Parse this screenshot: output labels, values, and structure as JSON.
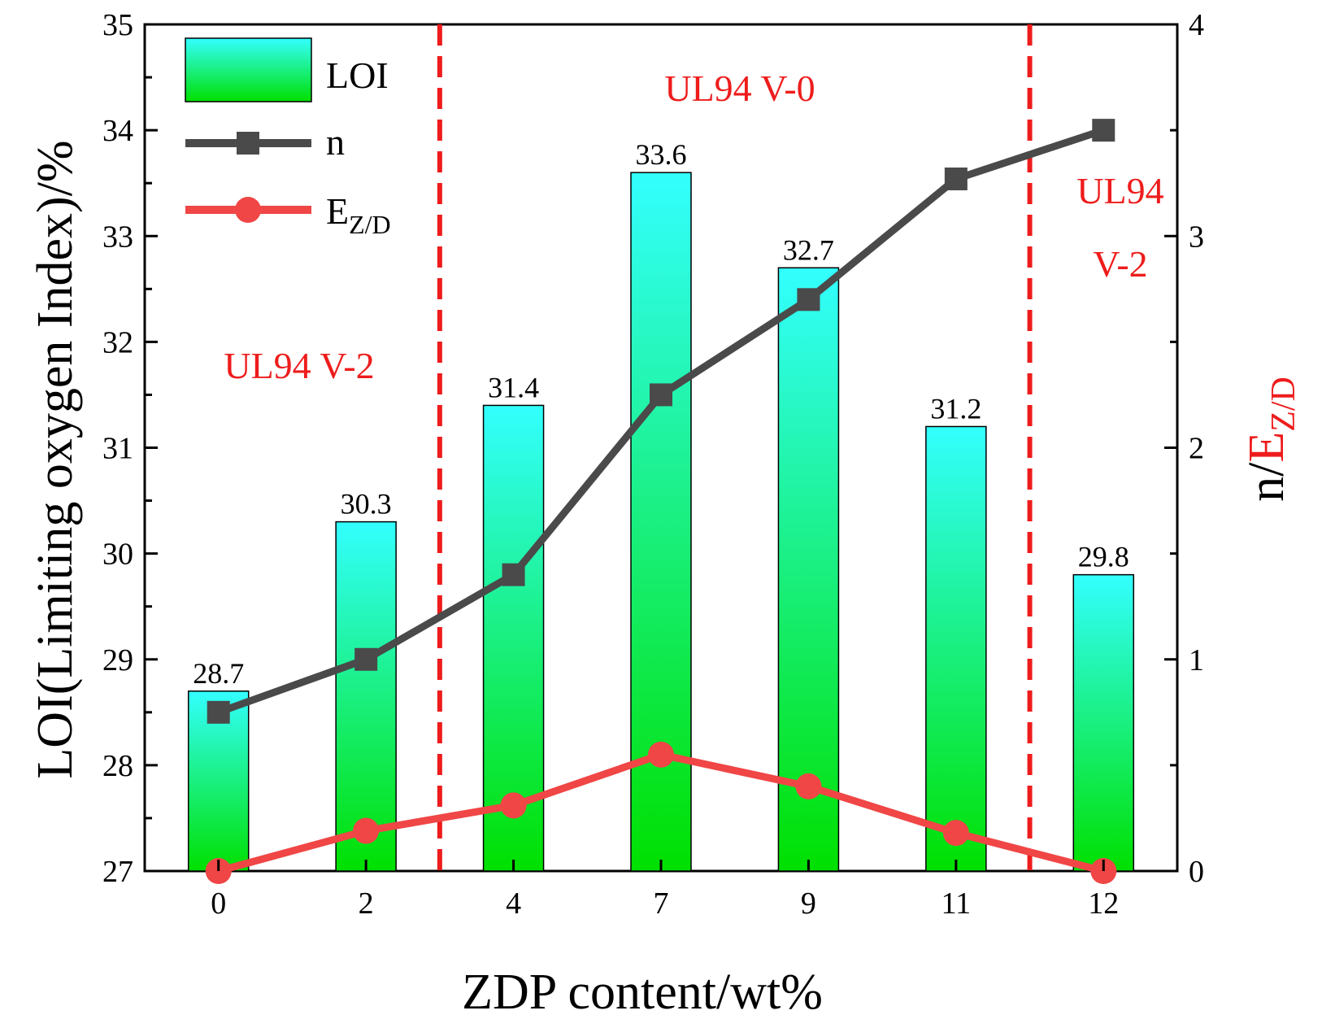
{
  "chart_data": {
    "type": "bar+line",
    "categories": [
      "0",
      "2",
      "4",
      "7",
      "9",
      "11",
      "12"
    ],
    "bars": {
      "name": "LOI",
      "values": [
        28.7,
        30.3,
        31.4,
        33.6,
        32.7,
        31.2,
        29.8
      ],
      "labels": [
        "28.7",
        "30.3",
        "31.4",
        "33.6",
        "32.7",
        "31.2",
        "29.8"
      ],
      "gradient_top": "#33ffff",
      "gradient_bottom": "#00e000"
    },
    "lines": [
      {
        "name": "n",
        "values": [
          0.75,
          1.0,
          1.4,
          2.25,
          2.7,
          3.27,
          3.5
        ],
        "color": "#4a4a4a",
        "marker": "square"
      },
      {
        "name": "E",
        "subscript": "Z/D",
        "values": [
          0.0,
          0.19,
          0.31,
          0.55,
          0.4,
          0.18,
          0.0
        ],
        "color": "#f04646",
        "marker": "circle"
      }
    ],
    "xlabel": "ZDP content/wt%",
    "ylabel": "LOI(Limiting oxygen Index)/%",
    "y2label": {
      "prefix": "n/",
      "main": "E",
      "sub": "Z/D",
      "prefix_color": "#000000",
      "suffix_color": "#ee1c1c"
    },
    "ylim": [
      27,
      35
    ],
    "yticks": [
      "27",
      "28",
      "29",
      "30",
      "31",
      "32",
      "33",
      "34",
      "35"
    ],
    "y2lim": [
      0,
      4
    ],
    "y2ticks": [
      "0",
      "1",
      "2",
      "3",
      "4"
    ],
    "dividers": [
      {
        "between": [
          1,
          2
        ],
        "color": "#ee1c1c",
        "style": "dashed"
      },
      {
        "between": [
          5,
          6
        ],
        "color": "#ee1c1c",
        "style": "dashed"
      }
    ],
    "region_labels": [
      {
        "text": "UL94 V-2",
        "lines": [
          "UL94 V-2"
        ]
      },
      {
        "text": "UL94 V-0",
        "lines": [
          "UL94 V-0"
        ]
      },
      {
        "text": "UL94 V-2",
        "lines": [
          "UL94",
          "V-2"
        ]
      }
    ],
    "legend": {
      "position": "top-left",
      "entries": [
        {
          "label": "LOI",
          "kind": "bar"
        },
        {
          "label": "n",
          "kind": "line-square"
        },
        {
          "label": "E",
          "sub": "Z/D",
          "kind": "line-circle"
        }
      ]
    },
    "colors": {
      "region_text": "#ee1c1c",
      "axis": "#000000"
    }
  }
}
